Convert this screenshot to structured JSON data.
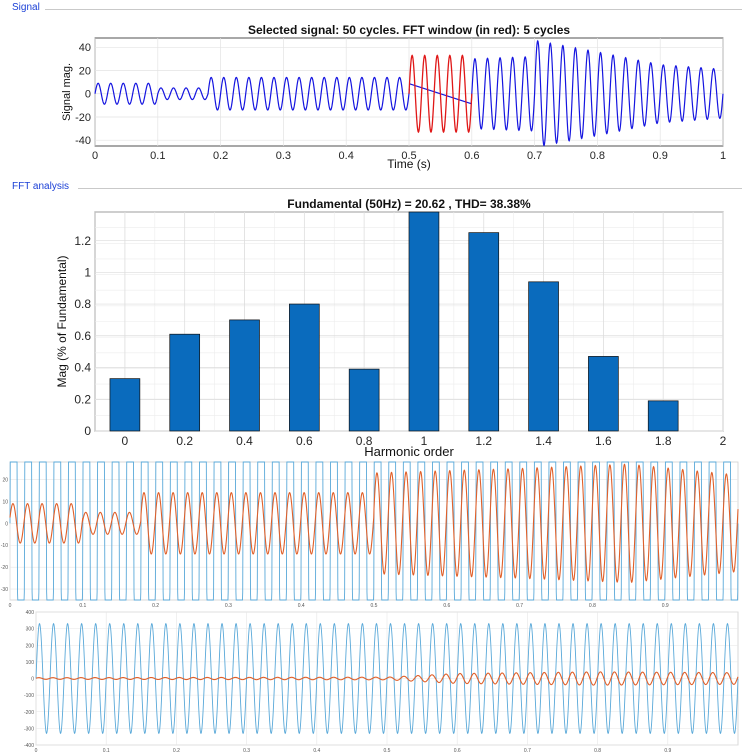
{
  "signal_panel": {
    "label": "Signal"
  },
  "fft_panel": {
    "label": "FFT analysis"
  },
  "chart_data": [
    {
      "id": "signal",
      "type": "line",
      "title": "Selected signal: 50 cycles. FFT window (in red): 5 cycles",
      "xlabel": "Time (s)",
      "ylabel": "Signal mag.",
      "xlim": [
        0,
        1
      ],
      "ylim": [
        -45,
        48
      ],
      "xticks": [
        "0",
        "0.1",
        "0.2",
        "0.3",
        "0.4",
        "0.5",
        "0.6",
        "0.7",
        "0.8",
        "0.9",
        "1"
      ],
      "yticks": [
        "-40",
        "-20",
        "0",
        "20",
        "40"
      ],
      "grid": true,
      "series": [
        {
          "role": "selected signal",
          "color": "#1515e0",
          "frequency_hz": 50,
          "amplitude_envelope": [
            [
              0,
              9
            ],
            [
              0.1,
              9
            ],
            [
              0.1,
              5
            ],
            [
              0.18,
              5
            ],
            [
              0.18,
              14
            ],
            [
              0.5,
              14
            ],
            [
              0.5,
              33
            ],
            [
              0.6,
              33
            ],
            [
              0.6,
              30
            ],
            [
              0.7,
              32
            ],
            [
              0.7,
              46
            ],
            [
              0.8,
              36
            ],
            [
              0.9,
              25
            ],
            [
              1.0,
              21
            ]
          ]
        },
        {
          "role": "FFT window",
          "color": "#e01818",
          "x_range": [
            0.5,
            0.6
          ]
        }
      ]
    },
    {
      "id": "fft",
      "type": "bar",
      "title": "Fundamental (50Hz) = 20.62 , THD= 38.38%",
      "xlabel": "Harmonic order",
      "ylabel": "Mag (% of Fundamental)",
      "xlim": [
        -0.1,
        2.0
      ],
      "ylim": [
        0,
        1.38
      ],
      "xticks": [
        "0",
        "0.2",
        "0.4",
        "0.6",
        "0.8",
        "1",
        "1.2",
        "1.4",
        "1.6",
        "1.8",
        "2"
      ],
      "yticks": [
        "0",
        "0.2",
        "0.4",
        "0.6",
        "0.8",
        "1",
        "1.2"
      ],
      "grid": true,
      "bar_color": "#0a6bbd",
      "x": [
        0,
        0.2,
        0.4,
        0.6,
        0.8,
        1.0,
        1.2,
        1.4,
        1.6,
        1.8
      ],
      "values": [
        0.33,
        0.61,
        0.7,
        0.8,
        0.39,
        1.38,
        1.25,
        0.94,
        0.47,
        0.19
      ]
    },
    {
      "id": "overlay-1",
      "type": "line",
      "xlim": [
        0,
        1
      ],
      "ylim": [
        -35,
        28
      ],
      "xticks": [
        "0",
        "0.1",
        "0.2",
        "0.3",
        "0.4",
        "0.5",
        "0.6",
        "0.7",
        "0.8",
        "0.9"
      ],
      "yticks": [
        "20",
        "10",
        "0",
        "-10",
        "-20",
        "-30"
      ],
      "grid": true,
      "series": [
        {
          "role": "reference",
          "color": "#5aa9d9",
          "frequency_hz": 50,
          "amplitude": 300
        },
        {
          "role": "signal",
          "color": "#e0602a",
          "frequency_hz": 50,
          "amplitude_envelope": [
            [
              0,
              9
            ],
            [
              0.1,
              9
            ],
            [
              0.1,
              5
            ],
            [
              0.18,
              5
            ],
            [
              0.18,
              14
            ],
            [
              0.5,
              14
            ],
            [
              0.5,
              23
            ],
            [
              0.7,
              25
            ],
            [
              0.85,
              27
            ],
            [
              1.0,
              22
            ]
          ]
        }
      ]
    },
    {
      "id": "overlay-2",
      "type": "line",
      "xlim": [
        0,
        1
      ],
      "ylim": [
        -400,
        400
      ],
      "xticks": [
        "0",
        "0.1",
        "0.2",
        "0.3",
        "0.4",
        "0.5",
        "0.6",
        "0.7",
        "0.8",
        "0.9"
      ],
      "yticks": [
        "400",
        "300",
        "200",
        "100",
        "0",
        "-100",
        "-200",
        "-300",
        "-400"
      ],
      "grid": true,
      "series": [
        {
          "role": "reference",
          "color": "#5aa9d9",
          "frequency_hz": 50,
          "amplitude": 330
        },
        {
          "role": "signal",
          "color": "#e0602a",
          "frequency_hz": 50,
          "amplitude_envelope": [
            [
              0,
              5
            ],
            [
              0.5,
              8
            ],
            [
              0.6,
              30
            ],
            [
              0.8,
              40
            ],
            [
              1.0,
              35
            ]
          ]
        }
      ]
    }
  ]
}
